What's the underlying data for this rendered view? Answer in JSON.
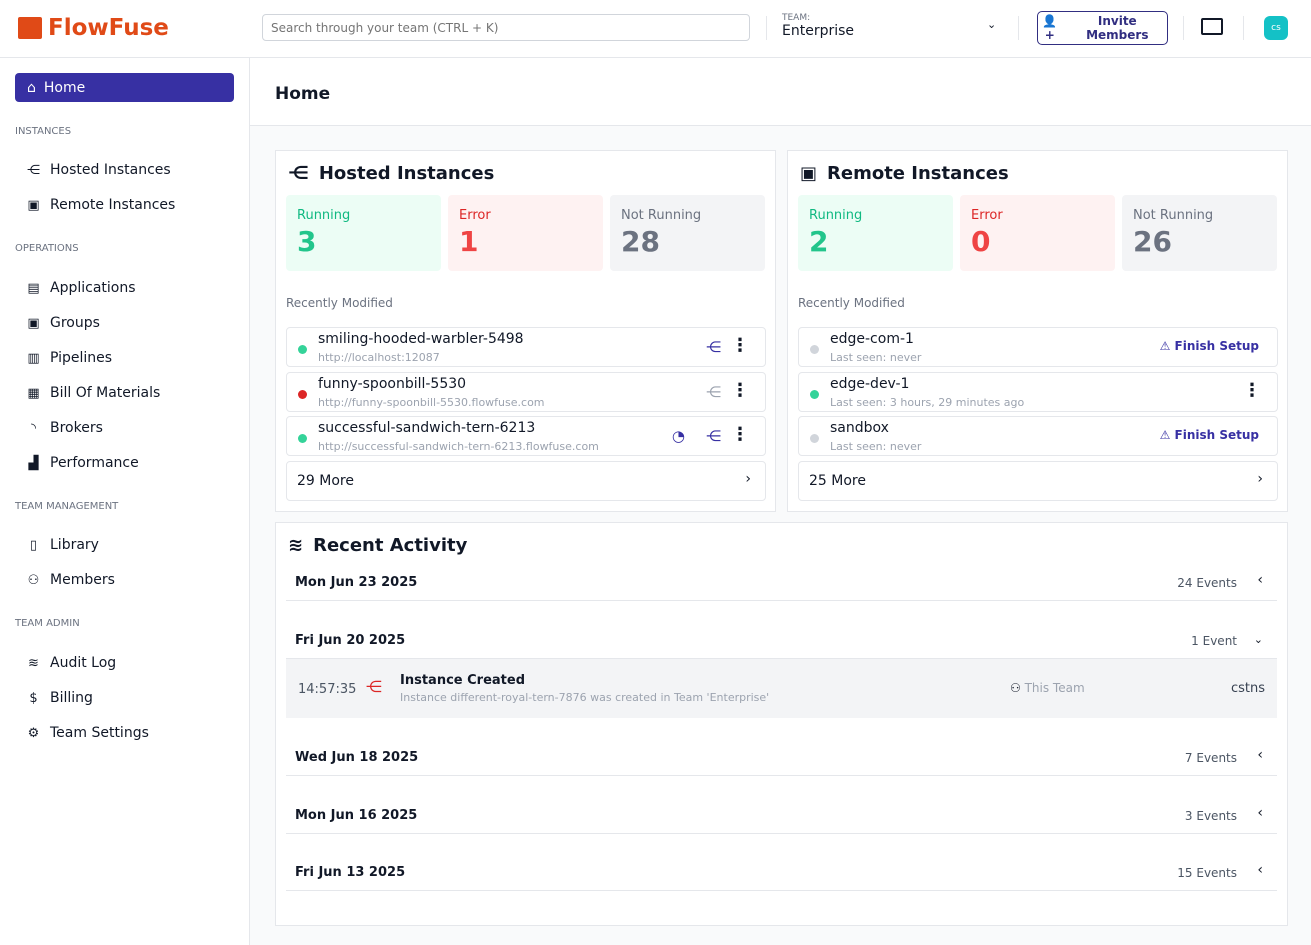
{
  "header": {
    "brand": "FlowFuse",
    "search_placeholder": "Search through your team (CTRL + K)",
    "team_label": "TEAM:",
    "team_name": "Enterprise",
    "invite": "Invite Members",
    "avatar": "cs"
  },
  "sidebar": {
    "home": "Home",
    "sections": [
      {
        "title": "Instances",
        "items": [
          {
            "label": "Hosted Instances",
            "icon": "hosted-instances-icon"
          },
          {
            "label": "Remote Instances",
            "icon": "chip-icon"
          }
        ]
      },
      {
        "title": "Operations",
        "items": [
          {
            "label": "Applications",
            "icon": "applications-icon"
          },
          {
            "label": "Groups",
            "icon": "groups-icon"
          },
          {
            "label": "Pipelines",
            "icon": "pipelines-icon"
          },
          {
            "label": "Bill Of Materials",
            "icon": "table-icon"
          },
          {
            "label": "Brokers",
            "icon": "rss-icon"
          },
          {
            "label": "Performance",
            "icon": "chart-bar-icon"
          }
        ]
      },
      {
        "title": "Team Management",
        "items": [
          {
            "label": "Library",
            "icon": "book-icon"
          },
          {
            "label": "Members",
            "icon": "users-icon"
          }
        ]
      },
      {
        "title": "Team Admin",
        "items": [
          {
            "label": "Audit Log",
            "icon": "database-icon"
          },
          {
            "label": "Billing",
            "icon": "dollar-icon"
          },
          {
            "label": "Team Settings",
            "icon": "cog-icon"
          }
        ]
      }
    ]
  },
  "page": {
    "title": "Home"
  },
  "hosted": {
    "title": "Hosted Instances",
    "running_label": "Running",
    "running": "3",
    "error_label": "Error",
    "error": "1",
    "stopped_label": "Not Running",
    "stopped": "28",
    "recent_label": "Recently Modified",
    "rows": [
      {
        "name": "smiling-hooded-warbler-5498",
        "url": "http://localhost:12087",
        "status": "running"
      },
      {
        "name": "funny-spoonbill-5530",
        "url": "http://funny-spoonbill-5530.flowfuse.com",
        "status": "error"
      },
      {
        "name": "successful-sandwich-tern-6213",
        "url": "http://successful-sandwich-tern-6213.flowfuse.com",
        "status": "running"
      }
    ],
    "more": "29 More"
  },
  "remote": {
    "title": "Remote Instances",
    "running_label": "Running",
    "running": "2",
    "error_label": "Error",
    "error": "0",
    "stopped_label": "Not Running",
    "stopped": "26",
    "recent_label": "Recently Modified",
    "rows": [
      {
        "name": "edge-com-1",
        "sub": "Last seen: never",
        "action": "Finish Setup"
      },
      {
        "name": "edge-dev-1",
        "sub": "Last seen: 3 hours, 29 minutes ago"
      },
      {
        "name": "sandbox",
        "sub": "Last seen: never",
        "action": "Finish Setup"
      }
    ],
    "more": "25 More"
  },
  "activity": {
    "title": "Recent Activity",
    "days": [
      {
        "date": "Mon Jun 23 2025",
        "count": "24 Events"
      },
      {
        "date": "Fri Jun 20 2025",
        "count": "1 Event"
      },
      {
        "date": "Wed Jun 18 2025",
        "count": "7 Events"
      },
      {
        "date": "Mon Jun 16 2025",
        "count": "3 Events"
      },
      {
        "date": "Fri Jun 13 2025",
        "count": "15 Events"
      }
    ],
    "event": {
      "time": "14:57:35",
      "title": "Instance Created",
      "desc": "Instance different-royal-tern-7876 was created in Team 'Enterprise'",
      "scope": "This Team",
      "user": "cstns"
    }
  },
  "colors": {
    "accent": "#3730a3",
    "brand": "#e04a17",
    "running": "#22c58b",
    "error": "#dc2626"
  }
}
